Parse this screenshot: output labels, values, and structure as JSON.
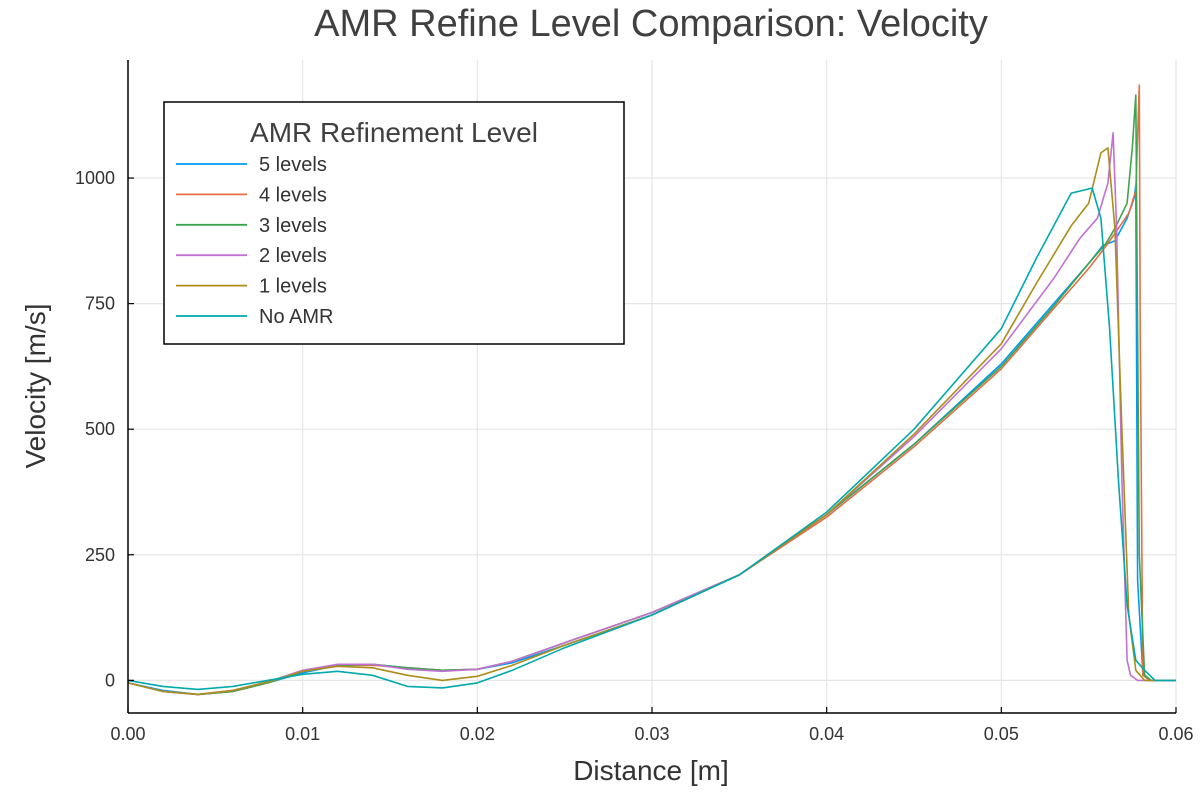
{
  "chart_data": {
    "type": "line",
    "title": "AMR Refine Level Comparison: Velocity",
    "xlabel": "Distance [m]",
    "ylabel": "Velocity [m/s]",
    "xlim": [
      0,
      0.06
    ],
    "ylim": [
      -65,
      1235
    ],
    "xticks": [
      0,
      0.01,
      0.02,
      0.03,
      0.04,
      0.05,
      0.06
    ],
    "xtick_labels": [
      "0.00",
      "0.01",
      "0.02",
      "0.03",
      "0.04",
      "0.05",
      "0.06"
    ],
    "yticks": [
      0,
      250,
      500,
      750,
      1000
    ],
    "ytick_labels": [
      "0",
      "250",
      "500",
      "750",
      "1000"
    ],
    "grid": true,
    "legend_title": "AMR Refinement Level",
    "legend_position": "top-left",
    "series": [
      {
        "name": "5 levels",
        "color": "#009AFA",
        "x": [
          0,
          0.002,
          0.004,
          0.006,
          0.008,
          0.01,
          0.012,
          0.014,
          0.016,
          0.018,
          0.02,
          0.022,
          0.025,
          0.03,
          0.035,
          0.04,
          0.045,
          0.05,
          0.053,
          0.055,
          0.0558,
          0.0565,
          0.0572,
          0.0576,
          0.0577,
          0.0578,
          0.0581,
          0.0585,
          0.06
        ],
        "y": [
          -5,
          -20,
          -28,
          -22,
          -5,
          15,
          30,
          32,
          25,
          20,
          22,
          35,
          70,
          130,
          210,
          330,
          470,
          630,
          750,
          830,
          865,
          875,
          920,
          960,
          985,
          200,
          15,
          0,
          0
        ]
      },
      {
        "name": "4 levels",
        "color": "#E36F47",
        "x": [
          0,
          0.002,
          0.004,
          0.006,
          0.008,
          0.01,
          0.012,
          0.014,
          0.016,
          0.018,
          0.02,
          0.022,
          0.025,
          0.03,
          0.035,
          0.04,
          0.045,
          0.05,
          0.053,
          0.055,
          0.056,
          0.0567,
          0.0573,
          0.0577,
          0.0579,
          0.05795,
          0.0581,
          0.0585,
          0.06
        ],
        "y": [
          -5,
          -22,
          -28,
          -22,
          -5,
          18,
          30,
          30,
          25,
          20,
          22,
          38,
          75,
          135,
          210,
          325,
          465,
          620,
          740,
          820,
          865,
          900,
          930,
          975,
          1185,
          700,
          10,
          0,
          0
        ]
      },
      {
        "name": "3 levels",
        "color": "#3EA44E",
        "x": [
          0,
          0.002,
          0.004,
          0.006,
          0.008,
          0.01,
          0.012,
          0.014,
          0.016,
          0.018,
          0.02,
          0.022,
          0.025,
          0.03,
          0.035,
          0.04,
          0.045,
          0.05,
          0.053,
          0.055,
          0.056,
          0.0565,
          0.0572,
          0.0575,
          0.0577,
          0.0579,
          0.0582,
          0.0586,
          0.06
        ],
        "y": [
          -5,
          -22,
          -28,
          -22,
          -5,
          18,
          30,
          32,
          25,
          20,
          22,
          38,
          75,
          135,
          210,
          330,
          470,
          625,
          745,
          830,
          870,
          900,
          950,
          1060,
          1165,
          250,
          10,
          0,
          0
        ]
      },
      {
        "name": "2 levels",
        "color": "#C271D2",
        "x": [
          0,
          0.002,
          0.004,
          0.006,
          0.008,
          0.01,
          0.012,
          0.014,
          0.016,
          0.018,
          0.02,
          0.022,
          0.025,
          0.03,
          0.035,
          0.04,
          0.045,
          0.05,
          0.053,
          0.0545,
          0.0555,
          0.0561,
          0.0564,
          0.0566,
          0.0569,
          0.0572,
          0.0574,
          0.0578,
          0.06
        ],
        "y": [
          -5,
          -22,
          -28,
          -20,
          -3,
          20,
          32,
          32,
          22,
          18,
          22,
          38,
          75,
          135,
          210,
          330,
          485,
          660,
          800,
          880,
          920,
          990,
          1090,
          900,
          400,
          40,
          10,
          0,
          0
        ]
      },
      {
        "name": "1 levels",
        "color": "#AC8D18",
        "x": [
          0,
          0.002,
          0.004,
          0.006,
          0.008,
          0.01,
          0.012,
          0.014,
          0.016,
          0.018,
          0.02,
          0.022,
          0.025,
          0.03,
          0.035,
          0.04,
          0.045,
          0.05,
          0.052,
          0.054,
          0.055,
          0.0557,
          0.0561,
          0.0565,
          0.0569,
          0.0573,
          0.0577,
          0.0582,
          0.06
        ],
        "y": [
          -5,
          -22,
          -28,
          -20,
          -3,
          18,
          28,
          25,
          10,
          0,
          8,
          30,
          70,
          130,
          210,
          330,
          490,
          670,
          790,
          905,
          950,
          1050,
          1060,
          900,
          500,
          130,
          20,
          0,
          0
        ]
      },
      {
        "name": "No AMR",
        "color": "#00A9AD",
        "x": [
          0,
          0.002,
          0.004,
          0.006,
          0.008,
          0.01,
          0.012,
          0.014,
          0.016,
          0.018,
          0.02,
          0.022,
          0.025,
          0.03,
          0.035,
          0.04,
          0.045,
          0.05,
          0.052,
          0.054,
          0.0552,
          0.0557,
          0.0562,
          0.0567,
          0.0572,
          0.0577,
          0.0582,
          0.0588,
          0.06
        ],
        "y": [
          0,
          -12,
          -18,
          -12,
          0,
          12,
          18,
          10,
          -12,
          -15,
          -5,
          20,
          65,
          130,
          210,
          335,
          500,
          700,
          840,
          970,
          980,
          920,
          700,
          400,
          150,
          40,
          20,
          0,
          0
        ]
      }
    ]
  }
}
